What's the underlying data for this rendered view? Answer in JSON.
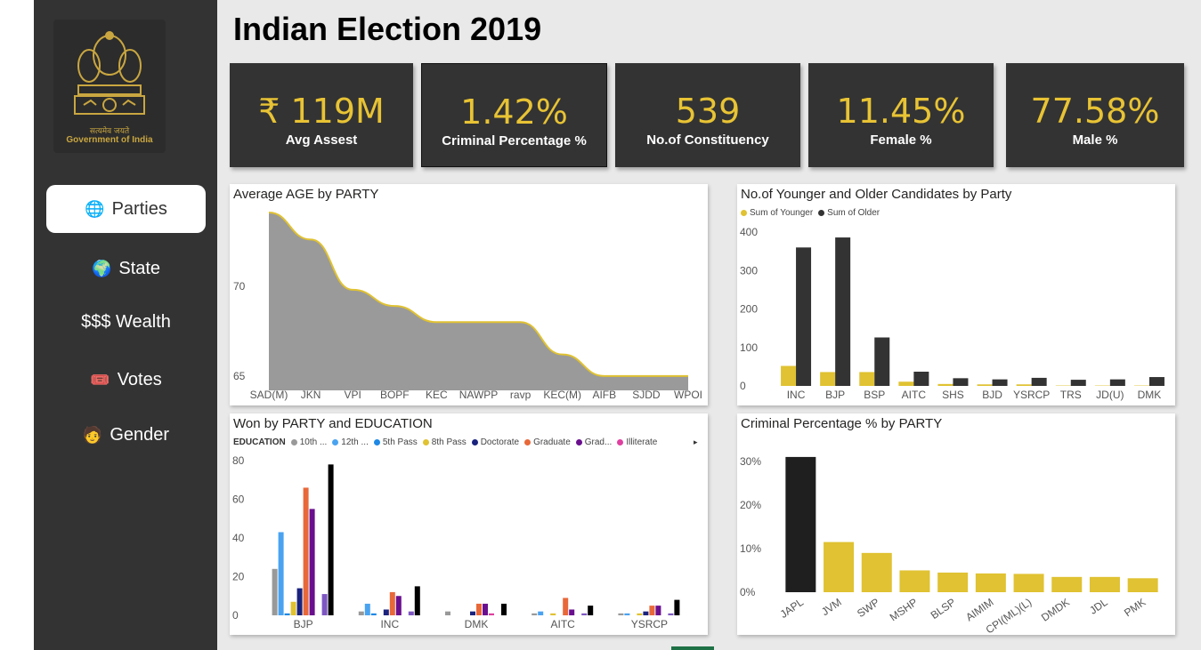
{
  "page": {
    "title": "Indian Election 2019"
  },
  "logo": {
    "caption_hindi": "सत्यमेव जयते",
    "caption": "Government of India"
  },
  "nav": [
    {
      "icon": "🌐",
      "label": "Parties",
      "active": true
    },
    {
      "icon": "🌍",
      "label": "State",
      "active": false
    },
    {
      "icon": "",
      "label": "$$$ Wealth",
      "active": false
    },
    {
      "icon": "🎟️",
      "label": "Votes",
      "active": false
    },
    {
      "icon": "🧑",
      "label": "Gender",
      "active": false
    }
  ],
  "kpis": [
    {
      "value": "₹ 119M",
      "label": "Avg Assest"
    },
    {
      "value": "1.42%",
      "label": "Criminal Percentage %"
    },
    {
      "value": "539",
      "label": "No.of Constituency"
    },
    {
      "value": "11.45%",
      "label": "Female %"
    },
    {
      "value": "77.58%",
      "label": "Male %"
    }
  ],
  "colors": {
    "accent": "#e8c334",
    "dark": "#333333",
    "bar_gold": "#e0c232",
    "bar_dark": "#333333"
  },
  "chart_data": [
    {
      "id": "age",
      "type": "area",
      "title": "Average AGE by PARTY",
      "categories": [
        "SAD(M)",
        "JKN",
        "VPI",
        "BOPF",
        "KEC",
        "NAWPP",
        "ravp",
        "KEC(M)",
        "AIFB",
        "SJDD",
        "WPOI"
      ],
      "values": [
        74.1,
        72.6,
        69.8,
        68.9,
        68.0,
        68.0,
        68.0,
        66.2,
        65.0,
        65.0,
        65.0
      ],
      "y_ticks": [
        65,
        70
      ],
      "ylim": [
        64.2,
        74.4
      ]
    },
    {
      "id": "younger_older",
      "type": "bar",
      "title": "No.of Younger and Older Candidates by Party",
      "categories": [
        "INC",
        "BJP",
        "BSP",
        "AITC",
        "SHS",
        "BJD",
        "YSRCP",
        "TRS",
        "JD(U)",
        "DMK"
      ],
      "series": [
        {
          "name": "Sum of Younger",
          "values": [
            52,
            36,
            36,
            11,
            5,
            4,
            4,
            1,
            1,
            1
          ]
        },
        {
          "name": "Sum of Older",
          "values": [
            360,
            386,
            126,
            37,
            20,
            17,
            21,
            16,
            17,
            23
          ]
        }
      ],
      "y_ticks": [
        0,
        100,
        200,
        300,
        400
      ],
      "ylim": [
        0,
        400
      ]
    },
    {
      "id": "won_education",
      "type": "bar",
      "title": "Won by PARTY and EDUCATION",
      "legend_title": "EDUCATION",
      "categories": [
        "BJP",
        "INC",
        "DMK",
        "AITC",
        "YSRCP"
      ],
      "series": [
        {
          "name": "10th ...",
          "color": "#999999",
          "values": [
            24,
            2,
            2,
            1,
            1
          ]
        },
        {
          "name": "12th ...",
          "color": "#4aa3f0",
          "values": [
            43,
            6,
            0,
            2,
            1
          ]
        },
        {
          "name": "5th Pass",
          "color": "#1e88e5",
          "values": [
            1,
            1,
            0,
            0,
            0
          ]
        },
        {
          "name": "8th Pass",
          "color": "#e0c232",
          "values": [
            7,
            0,
            0,
            1,
            1
          ]
        },
        {
          "name": "Doctorate",
          "color": "#1a237e",
          "values": [
            14,
            3,
            2,
            0,
            2
          ]
        },
        {
          "name": "Graduate",
          "color": "#e8683a",
          "values": [
            66,
            12,
            6,
            9,
            5
          ]
        },
        {
          "name": "Grad...",
          "color": "#6a0f8e",
          "values": [
            55,
            10,
            6,
            3,
            5
          ]
        },
        {
          "name": "Illiterate",
          "color": "#e040a0",
          "values": [
            0,
            0,
            1,
            0,
            0
          ]
        },
        {
          "name": "",
          "color": "#7e57c2",
          "values": [
            11,
            2,
            0,
            1,
            1
          ]
        },
        {
          "name": "",
          "color": "#000000",
          "values": [
            78,
            15,
            6,
            5,
            8
          ]
        }
      ],
      "y_ticks": [
        0,
        20,
        40,
        60,
        80
      ],
      "ylim": [
        0,
        80
      ]
    },
    {
      "id": "criminal",
      "type": "bar",
      "title": "Criminal Percentage % by PARTY",
      "categories": [
        "JAPL",
        "JVM",
        "SWP",
        "MSHP",
        "BLSP",
        "AIMIM",
        "CPI(ML)(L)",
        "DMDK",
        "JDL",
        "PMK"
      ],
      "values": [
        31,
        11.5,
        9,
        5,
        4.5,
        4.3,
        4.2,
        3.5,
        3.5,
        3.2
      ],
      "highlight_index": 0,
      "y_ticks": [
        "0%",
        "10%",
        "20%",
        "30%"
      ],
      "ylim": [
        0,
        32
      ]
    }
  ]
}
